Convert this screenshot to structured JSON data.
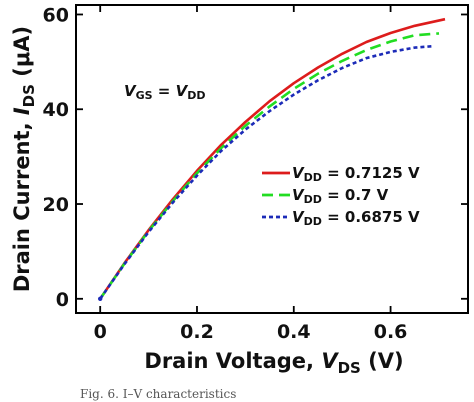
{
  "chart_data": {
    "type": "line",
    "xlabel": {
      "text": "Drain Voltage, ",
      "var": "V",
      "sub": "DS",
      "unit": " (V)"
    },
    "ylabel": {
      "text": "Drain Current, ",
      "var": "I",
      "sub": "DS",
      "unit": " (μA)"
    },
    "xlim": [
      -0.05,
      0.76
    ],
    "ylim": [
      -3,
      62
    ],
    "xticks": [
      0,
      0.2,
      0.4,
      0.6
    ],
    "xtick_labels": [
      "0",
      "0.2",
      "0.4",
      "0.6"
    ],
    "yticks": [
      0,
      20,
      40,
      60
    ],
    "ytick_labels": [
      "0",
      "20",
      "40",
      "60"
    ],
    "annotation": {
      "lhs_var": "V",
      "lhs_sub": "GS",
      "eq": " = ",
      "rhs_var": "V",
      "rhs_sub": "DD"
    },
    "legend_position": "right",
    "series": [
      {
        "name": {
          "var": "V",
          "sub": "DD",
          "rest": " = 0.7125 V"
        },
        "color": "#dd1c1c",
        "dash": "solid",
        "x": [
          0,
          0.05,
          0.1,
          0.15,
          0.2,
          0.25,
          0.3,
          0.35,
          0.4,
          0.45,
          0.5,
          0.55,
          0.6,
          0.65,
          0.7125
        ],
        "y": [
          0,
          7.5,
          14.5,
          21,
          27,
          32.5,
          37.3,
          41.7,
          45.5,
          48.8,
          51.7,
          54.2,
          56.1,
          57.6,
          59
        ]
      },
      {
        "name": {
          "var": "V",
          "sub": "DD",
          "rest": " = 0.7 V"
        },
        "color": "#22dd22",
        "dash": "long",
        "x": [
          0,
          0.05,
          0.1,
          0.15,
          0.2,
          0.25,
          0.3,
          0.35,
          0.4,
          0.45,
          0.5,
          0.55,
          0.6,
          0.65,
          0.7
        ],
        "y": [
          0,
          7.4,
          14.3,
          20.6,
          26.5,
          31.8,
          36.5,
          40.6,
          44.3,
          47.5,
          50.2,
          52.5,
          54.3,
          55.6,
          56
        ]
      },
      {
        "name": {
          "var": "V",
          "sub": "DD",
          "rest": " = 0.6875 V"
        },
        "color": "#1c2bb8",
        "dash": "short",
        "x": [
          0,
          0.05,
          0.1,
          0.15,
          0.2,
          0.25,
          0.3,
          0.35,
          0.4,
          0.45,
          0.5,
          0.55,
          0.6,
          0.65,
          0.6875
        ],
        "y": [
          0,
          7.3,
          14.1,
          20.3,
          26,
          31.2,
          35.7,
          39.6,
          43.1,
          46.1,
          48.7,
          50.8,
          52.1,
          53,
          53.3
        ]
      }
    ]
  },
  "caption": "Fig. 6. I–V characteristics"
}
